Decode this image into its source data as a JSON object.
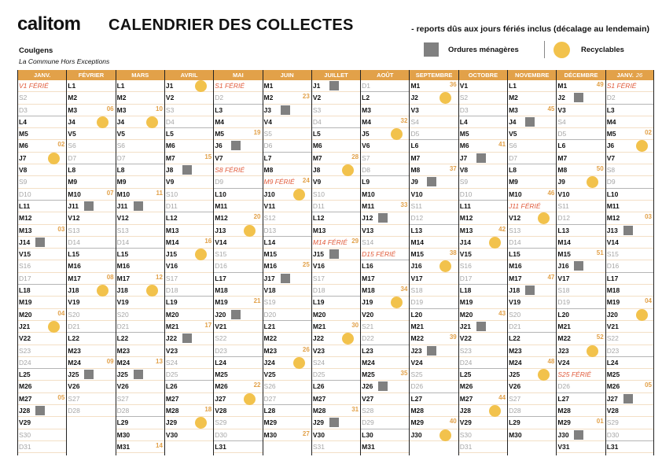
{
  "header": {
    "logo": "calitom",
    "title": "CALENDRIER DES COLLECTES",
    "note": "- reports dûs aux jours fériés inclus (décalage au lendemain)",
    "commune": "Coulgens",
    "subtitle": "La Commune Hors Exceptions"
  },
  "legend": {
    "om_label": "Ordures ménagères",
    "om_color": "#808080",
    "rec_label": "Recyclables",
    "rec_color": "#f2c24c"
  },
  "holiday_suffix": "FÉRIÉ",
  "months": [
    {
      "name": "JANV.",
      "days": 31,
      "first": 4,
      "holidays": [
        1
      ],
      "om": [
        14,
        28
      ],
      "rec": [
        7,
        21
      ],
      "weeks": {
        "6": "02",
        "13": "03",
        "20": "04",
        "27": "05"
      }
    },
    {
      "name": "FÉVRIER",
      "days": 28,
      "first": 0,
      "holidays": [],
      "om": [
        11,
        25
      ],
      "rec": [
        4,
        18
      ],
      "weeks": {
        "3": "06",
        "10": "07",
        "17": "08",
        "24": "09"
      }
    },
    {
      "name": "MARS",
      "days": 31,
      "first": 0,
      "holidays": [],
      "om": [
        11,
        25
      ],
      "rec": [
        4,
        18
      ],
      "weeks": {
        "3": "10",
        "10": "11",
        "17": "12",
        "24": "13",
        "31": "14"
      }
    },
    {
      "name": "AVRIL",
      "days": 30,
      "first": 3,
      "holidays": [],
      "om": [
        8,
        22
      ],
      "rec": [
        1,
        15,
        29
      ],
      "weeks": {
        "7": "15",
        "14": "16",
        "21": "17",
        "28": "18"
      }
    },
    {
      "name": "MAI",
      "days": 31,
      "first": 5,
      "holidays": [
        1,
        8
      ],
      "om": [
        6,
        20
      ],
      "rec": [
        13,
        27
      ],
      "weeks": {
        "5": "19",
        "12": "20",
        "19": "21",
        "26": "22"
      }
    },
    {
      "name": "JUIN",
      "days": 30,
      "first": 1,
      "holidays": [
        9
      ],
      "om": [
        3,
        17
      ],
      "rec": [
        10,
        24
      ],
      "weeks": {
        "2": "23",
        "9": "24",
        "16": "25",
        "23": "26",
        "30": "27"
      }
    },
    {
      "name": "JUILLET",
      "days": 31,
      "first": 3,
      "holidays": [
        14
      ],
      "om": [
        1,
        15,
        29
      ],
      "rec": [
        8,
        22
      ],
      "weeks": {
        "7": "28",
        "14": "29",
        "21": "30",
        "28": "31"
      }
    },
    {
      "name": "AOÛT",
      "days": 31,
      "first": 6,
      "holidays": [
        15
      ],
      "om": [
        12,
        26
      ],
      "rec": [
        5,
        19
      ],
      "weeks": {
        "4": "32",
        "11": "33",
        "18": "34",
        "25": "35"
      }
    },
    {
      "name": "SEPTEMBRE",
      "days": 30,
      "first": 2,
      "holidays": [],
      "om": [
        9,
        23
      ],
      "rec": [
        2,
        16,
        30
      ],
      "weeks": {
        "1": "36",
        "8": "37",
        "15": "38",
        "22": "39",
        "29": "40"
      }
    },
    {
      "name": "OCTOBRE",
      "days": 31,
      "first": 4,
      "holidays": [],
      "om": [
        7,
        21
      ],
      "rec": [
        14,
        28
      ],
      "weeks": {
        "6": "41",
        "13": "42",
        "20": "43",
        "27": "44"
      }
    },
    {
      "name": "NOVEMBRE",
      "days": 30,
      "first": 0,
      "holidays": [
        11
      ],
      "om": [
        4,
        18
      ],
      "rec": [
        12,
        25
      ],
      "weeks": {
        "3": "45",
        "10": "46",
        "17": "47",
        "24": "48"
      }
    },
    {
      "name": "DÉCEMBRE",
      "days": 31,
      "first": 2,
      "holidays": [
        25
      ],
      "om": [
        2,
        16,
        30
      ],
      "rec": [
        9,
        23
      ],
      "weeks": {
        "1": "49",
        "8": "50",
        "15": "51",
        "22": "52",
        "29": "01"
      }
    },
    {
      "name": "JANV.",
      "year": "26",
      "days": 31,
      "first": 5,
      "holidays": [
        1
      ],
      "om": [
        13,
        27
      ],
      "rec": [
        6,
        20
      ],
      "weeks": {
        "5": "02",
        "12": "03",
        "19": "04",
        "26": "05"
      }
    }
  ]
}
